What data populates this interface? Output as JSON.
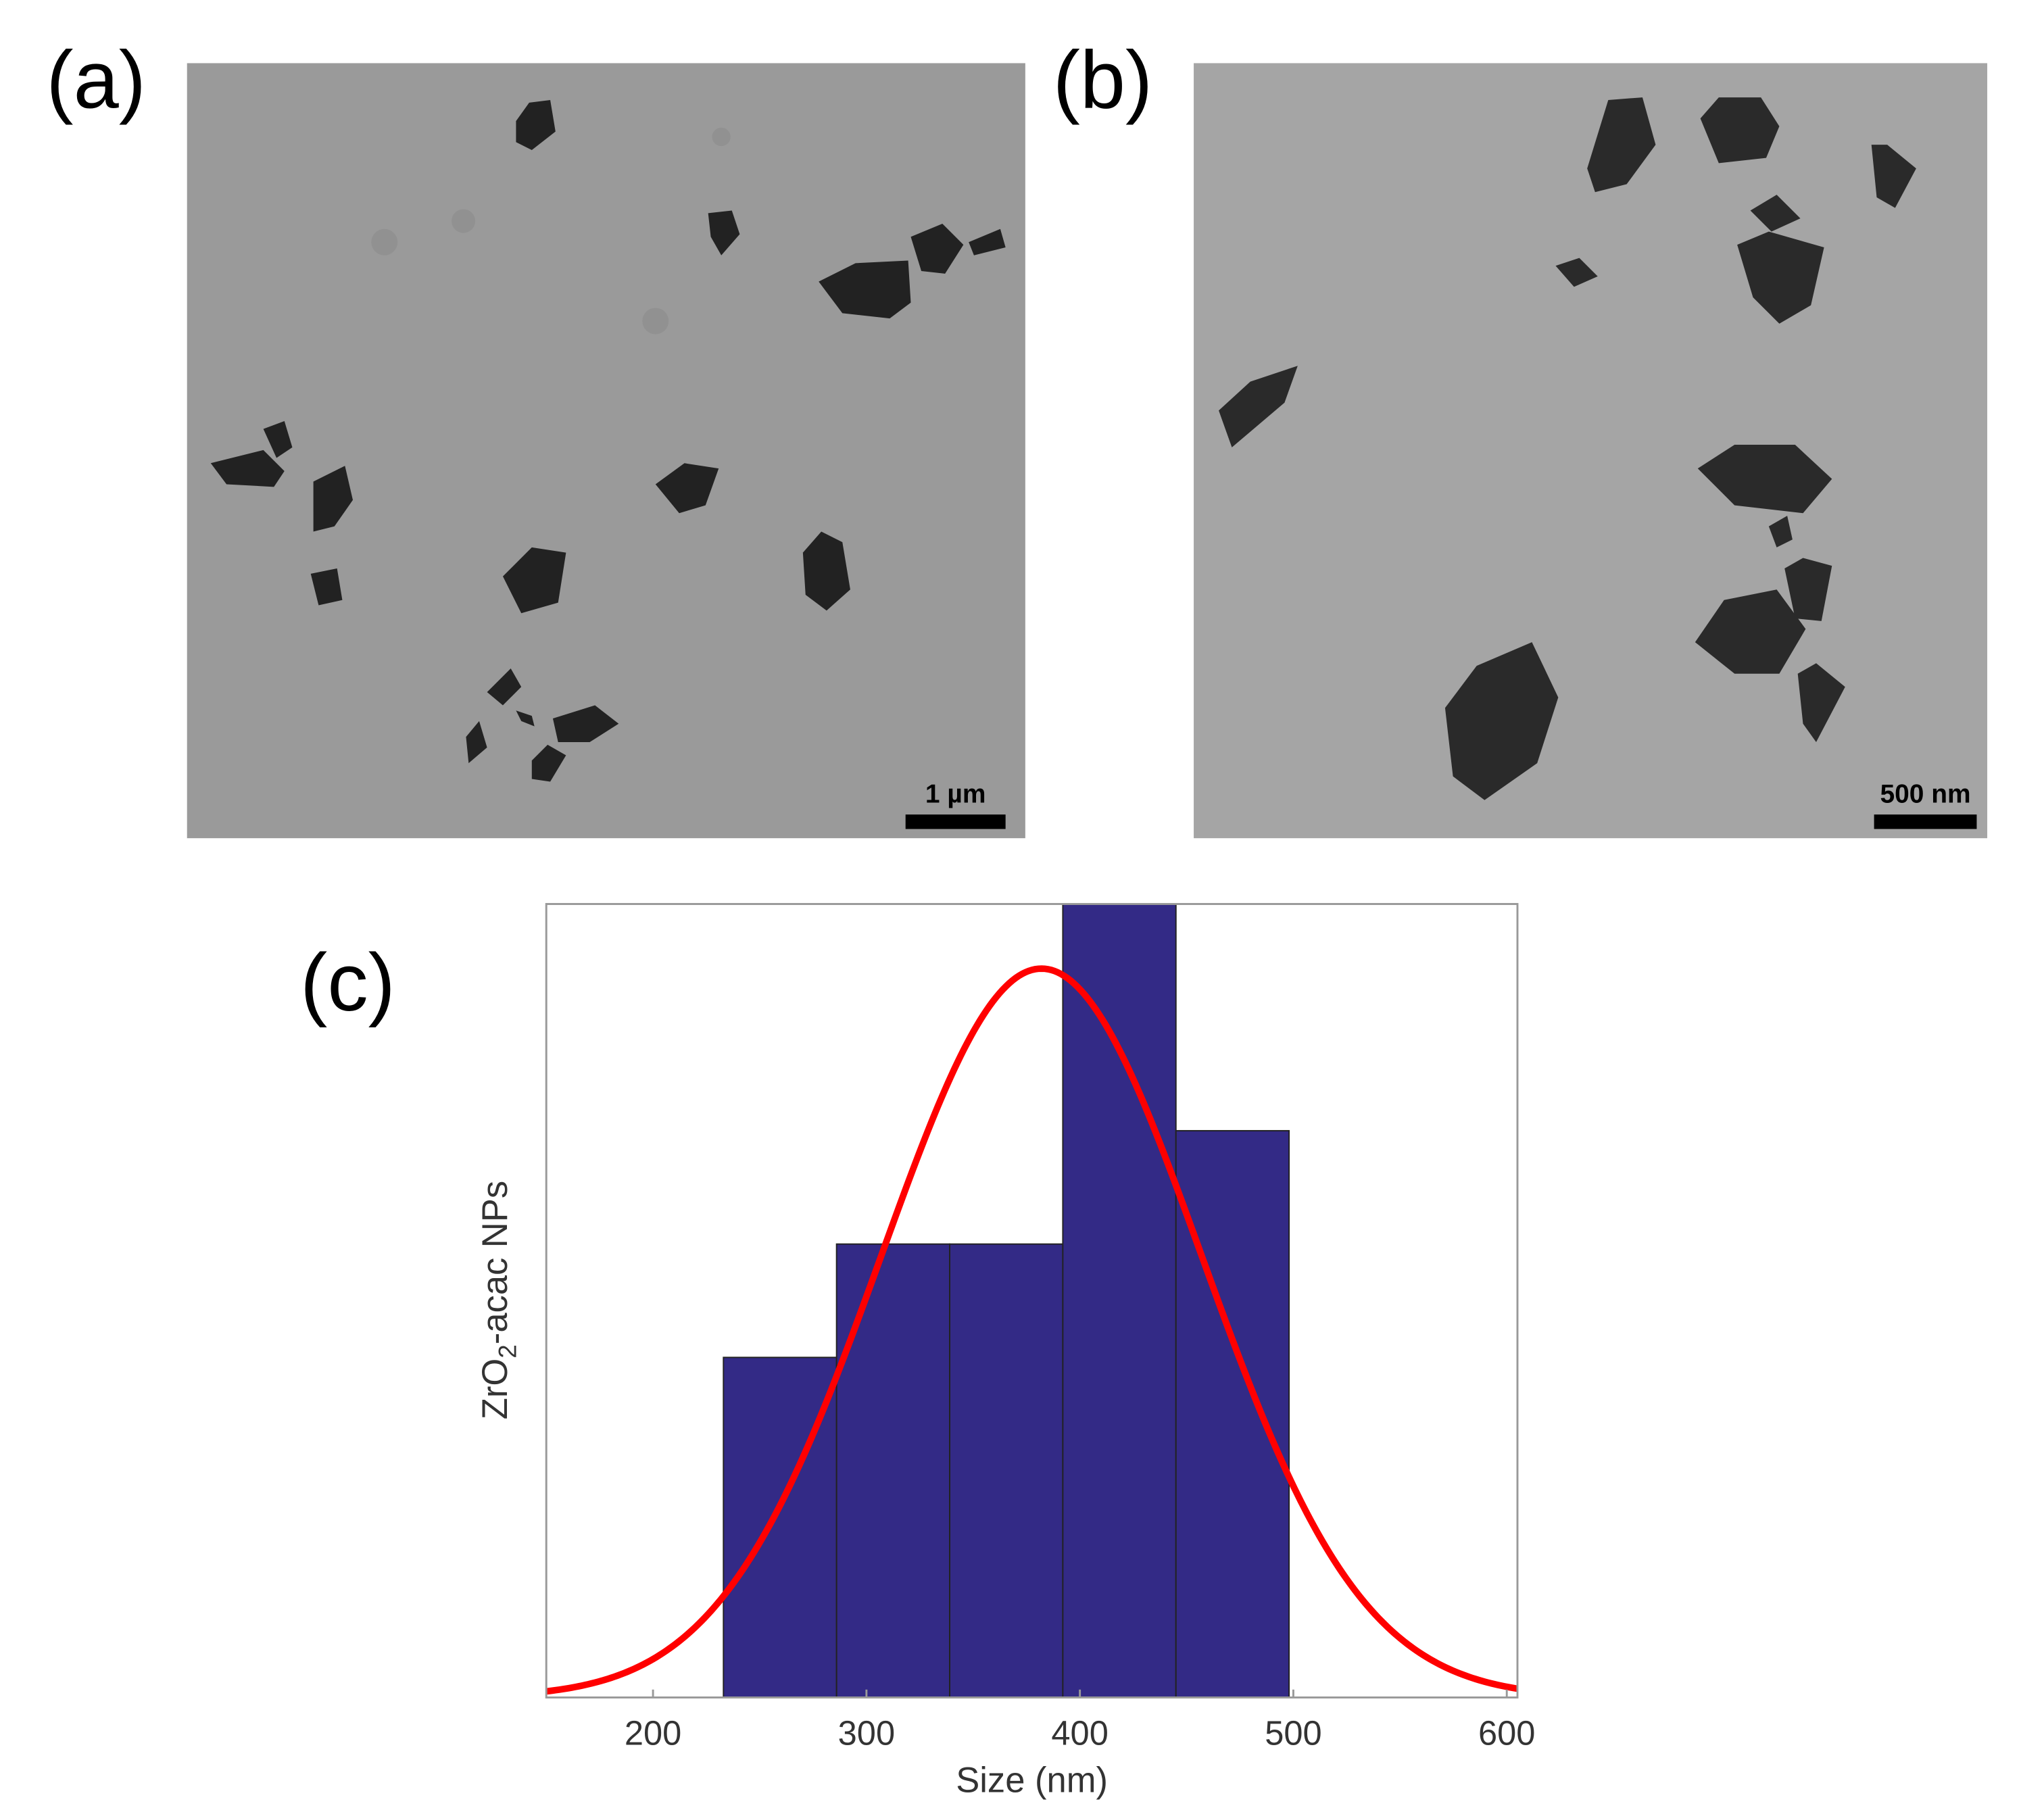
{
  "panels": [
    {
      "label": "(a)",
      "scale_bar": "1 µm"
    },
    {
      "label": "(b)",
      "scale_bar": "500 nm"
    }
  ],
  "chart_data": {
    "type": "histogram",
    "label": "(c)",
    "x_label": "Size (nm)",
    "y_label": [
      "ZrO",
      "2",
      "-acac NPs"
    ],
    "bins": [
      233,
      286,
      339,
      392,
      445,
      498
    ],
    "values": [
      3,
      4,
      4,
      7,
      5
    ],
    "color": "#332a86",
    "edge_color": "#222222",
    "xlim": [
      150,
      605
    ],
    "ylim": [
      0,
      7
    ],
    "xticks": [
      200,
      300,
      400,
      500,
      600
    ],
    "fit": {
      "type": "normal",
      "mean": 382,
      "sd": 75,
      "peak": 6.43,
      "color": "#ff0000"
    }
  }
}
